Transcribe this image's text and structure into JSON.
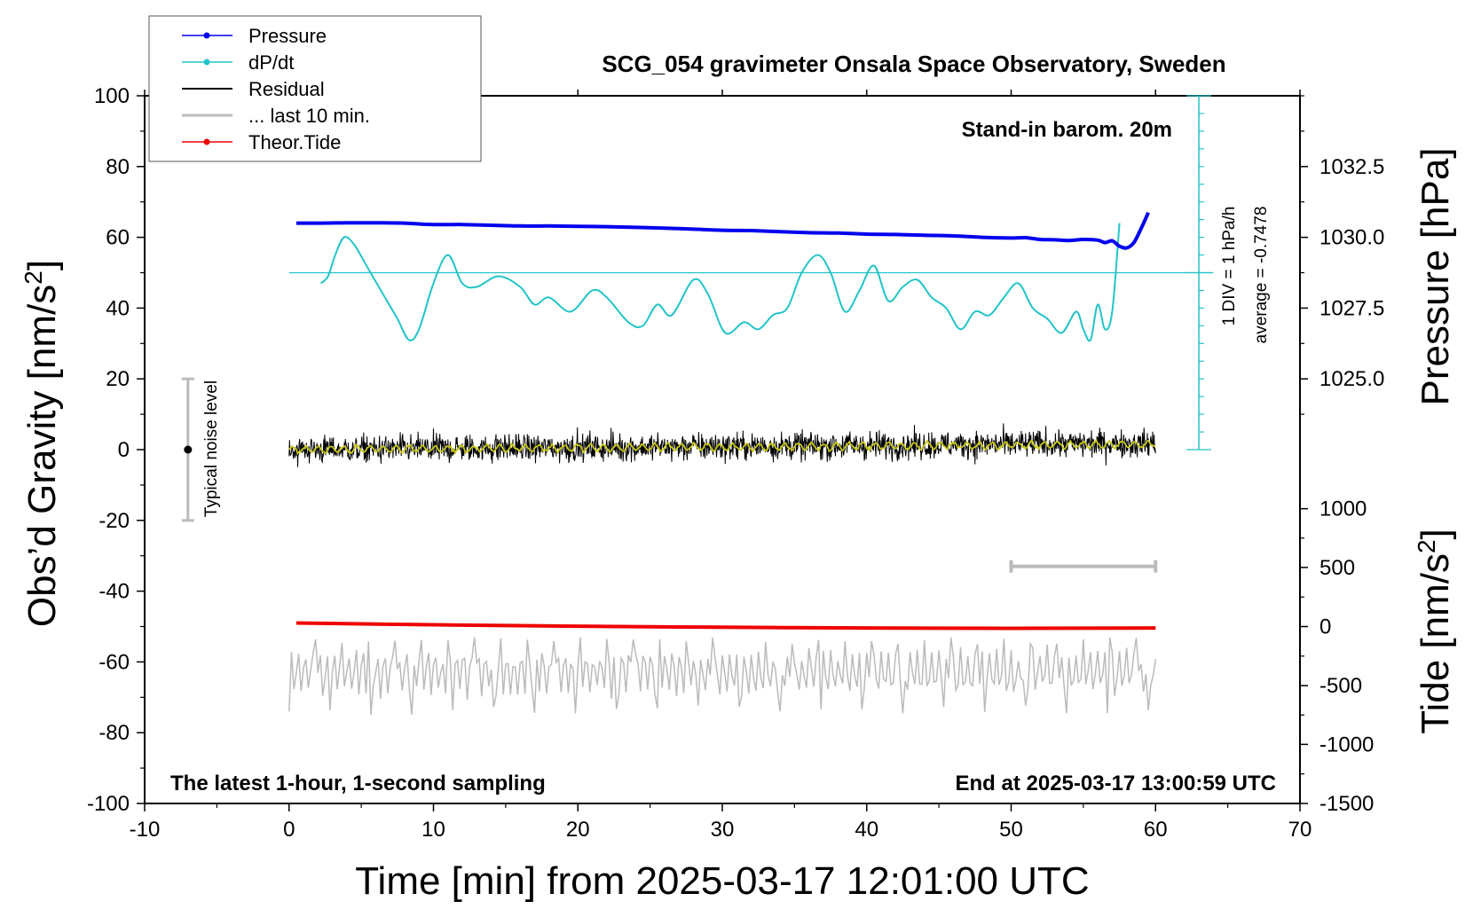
{
  "chart_data": {
    "type": "line",
    "title": "SCG_054 gravimeter Onsala Space Observatory, Sweden",
    "xlabel": "Time [min] from 2025-03-17 12:01:00 UTC",
    "ylabel_left": "Obs’d Gravity [nm/s²]",
    "ylabel_right_top": "Pressure [hPa]",
    "ylabel_right_bottom": "Tide [nm/s²]",
    "xlim": [
      -10,
      70
    ],
    "ylim": [
      -100,
      100
    ],
    "x_ticks": [
      -10,
      0,
      10,
      20,
      30,
      40,
      50,
      60,
      70
    ],
    "x_tick_labels": [
      "-10",
      "0",
      "10",
      "20",
      "30",
      "40",
      "50",
      "60",
      "70"
    ],
    "y_ticks": [
      100,
      80,
      60,
      40,
      20,
      0,
      -20,
      -40,
      -60,
      -80,
      -100
    ],
    "y_tick_labels": [
      "100",
      "80",
      "60",
      "40",
      "20",
      "0",
      "-20",
      "-40",
      "-60",
      "-80",
      "-100"
    ],
    "pressure_axis": {
      "ticks": [
        1032.5,
        1030.0,
        1027.5,
        1025.0
      ],
      "tick_labels": [
        "1032.5",
        "1030.0",
        "1027.5",
        "1025.0"
      ],
      "gravity_equivalent": [
        80,
        60,
        40,
        20
      ]
    },
    "tide_axis": {
      "ticks": [
        1000,
        500,
        0,
        -500,
        -1000,
        -1500
      ],
      "tick_labels": [
        "1000",
        "500",
        "0",
        "-500",
        "-1000",
        "-1500"
      ],
      "gravity_equivalent": [
        -16.7,
        -33.3,
        -50,
        -66.7,
        -83.3,
        -100
      ]
    },
    "legend": {
      "placement": "top-left",
      "entries": [
        {
          "label": "Pressure",
          "color": "#0000ee",
          "marker": true
        },
        {
          "label": "dP/dt",
          "color": "#22c4c8",
          "marker": true
        },
        {
          "label": "Residual",
          "color": "#000000",
          "marker": false
        },
        {
          "label": "... last 10 min.",
          "color": "#bbbbbb",
          "marker": false
        },
        {
          "label": "Theor.Tide",
          "color": "#ee0000",
          "marker": true
        }
      ]
    },
    "annotations": {
      "stand_in": "Stand-in barom. 20m",
      "dpdt_scale": "1 DIV = 1 hPa/h",
      "dpdt_average": "average = -0.7478",
      "noise_label": "Typical noise level",
      "bottom_left": "The latest 1-hour, 1-second sampling",
      "bottom_right": "End at 2025-03-17 13:00:59 UTC"
    },
    "noise_bar": {
      "x": -7,
      "y_low": -20,
      "y_high": 20,
      "center": 0
    },
    "last10_bar": {
      "x_start": 50,
      "x_end": 60,
      "y": -33
    },
    "dpdt_reference": {
      "x_start": 0,
      "x_end": 64,
      "y": 50
    },
    "dpdt_scale_bar": {
      "x": 63,
      "y_low": 0,
      "y_high": 100,
      "division": 5
    },
    "series": [
      {
        "name": "Pressure",
        "color": "#0000ee",
        "x": [
          0.5,
          2,
          4,
          6,
          8,
          10,
          12,
          14,
          16,
          18,
          20,
          22,
          24,
          26,
          28,
          30,
          32,
          34,
          36,
          38,
          40,
          42,
          44,
          46,
          48,
          50,
          51,
          52,
          53,
          54,
          55,
          56,
          56.5,
          57,
          57.5,
          58,
          58.5,
          59,
          59.5
        ],
        "y": [
          64,
          64,
          64.1,
          64.1,
          64,
          63.6,
          63.6,
          63.4,
          63.2,
          63.2,
          63.1,
          63,
          62.8,
          62.6,
          62.3,
          62,
          61.9,
          61.6,
          61.3,
          61.2,
          60.9,
          60.8,
          60.6,
          60.4,
          60,
          59.8,
          59.9,
          59.4,
          59.3,
          59.1,
          59.4,
          59.2,
          58.5,
          59,
          57.5,
          57,
          58.5,
          62.5,
          67
        ]
      },
      {
        "name": "dP/dt",
        "color": "#22c4c8",
        "x": [
          2.2,
          2.7,
          3.2,
          3.8,
          4.5,
          5.5,
          6.5,
          7.5,
          8.3,
          9.0,
          10.0,
          11.0,
          12.0,
          13.0,
          14.5,
          16.0,
          17.0,
          18.0,
          19.5,
          21.0,
          22.0,
          23.5,
          24.5,
          25.5,
          26.5,
          28.0,
          29.0,
          30.2,
          31.5,
          32.5,
          33.5,
          34.5,
          35.5,
          36.6,
          37.5,
          38.5,
          39.5,
          40.5,
          41.5,
          42.5,
          43.5,
          44.5,
          45.5,
          46.5,
          47.5,
          48.5,
          49.5,
          50.5,
          51.5,
          52.5,
          53.5,
          54.5,
          55.0,
          55.5,
          56.0,
          56.5,
          57.0,
          57.5
        ],
        "y": [
          47,
          49,
          55,
          60,
          58,
          51,
          44,
          37,
          31,
          34,
          47,
          55,
          47,
          46,
          49,
          46,
          41,
          43,
          39,
          45,
          43,
          36,
          35,
          41,
          38,
          48,
          44,
          33,
          36,
          34,
          38,
          40,
          50,
          55,
          50,
          39,
          45,
          52,
          42,
          46,
          48,
          43,
          40,
          34,
          39,
          38,
          43,
          47,
          40,
          37,
          33,
          39,
          34,
          31,
          41,
          34,
          39,
          64
        ]
      },
      {
        "name": "Residual",
        "color": "#000000",
        "x_range": [
          0,
          60
        ],
        "amplitude_range": [
          -14,
          13
        ],
        "center": 0
      },
      {
        "name": "Residual smoothed",
        "color": "#c8c814",
        "x_range": [
          0,
          60
        ],
        "y_range": [
          -2,
          3
        ]
      },
      {
        "name": "... last 10 min.",
        "color": "#bbbbbb",
        "x_range": [
          0,
          60
        ],
        "y_range": [
          -78,
          -50
        ],
        "center": -63
      },
      {
        "name": "Theor.Tide",
        "color": "#ee0000",
        "x": [
          0.5,
          10,
          20,
          30,
          40,
          50,
          60
        ],
        "y": [
          -49,
          -49.5,
          -49.9,
          -50.2,
          -50.4,
          -50.5,
          -50.4
        ]
      }
    ]
  }
}
